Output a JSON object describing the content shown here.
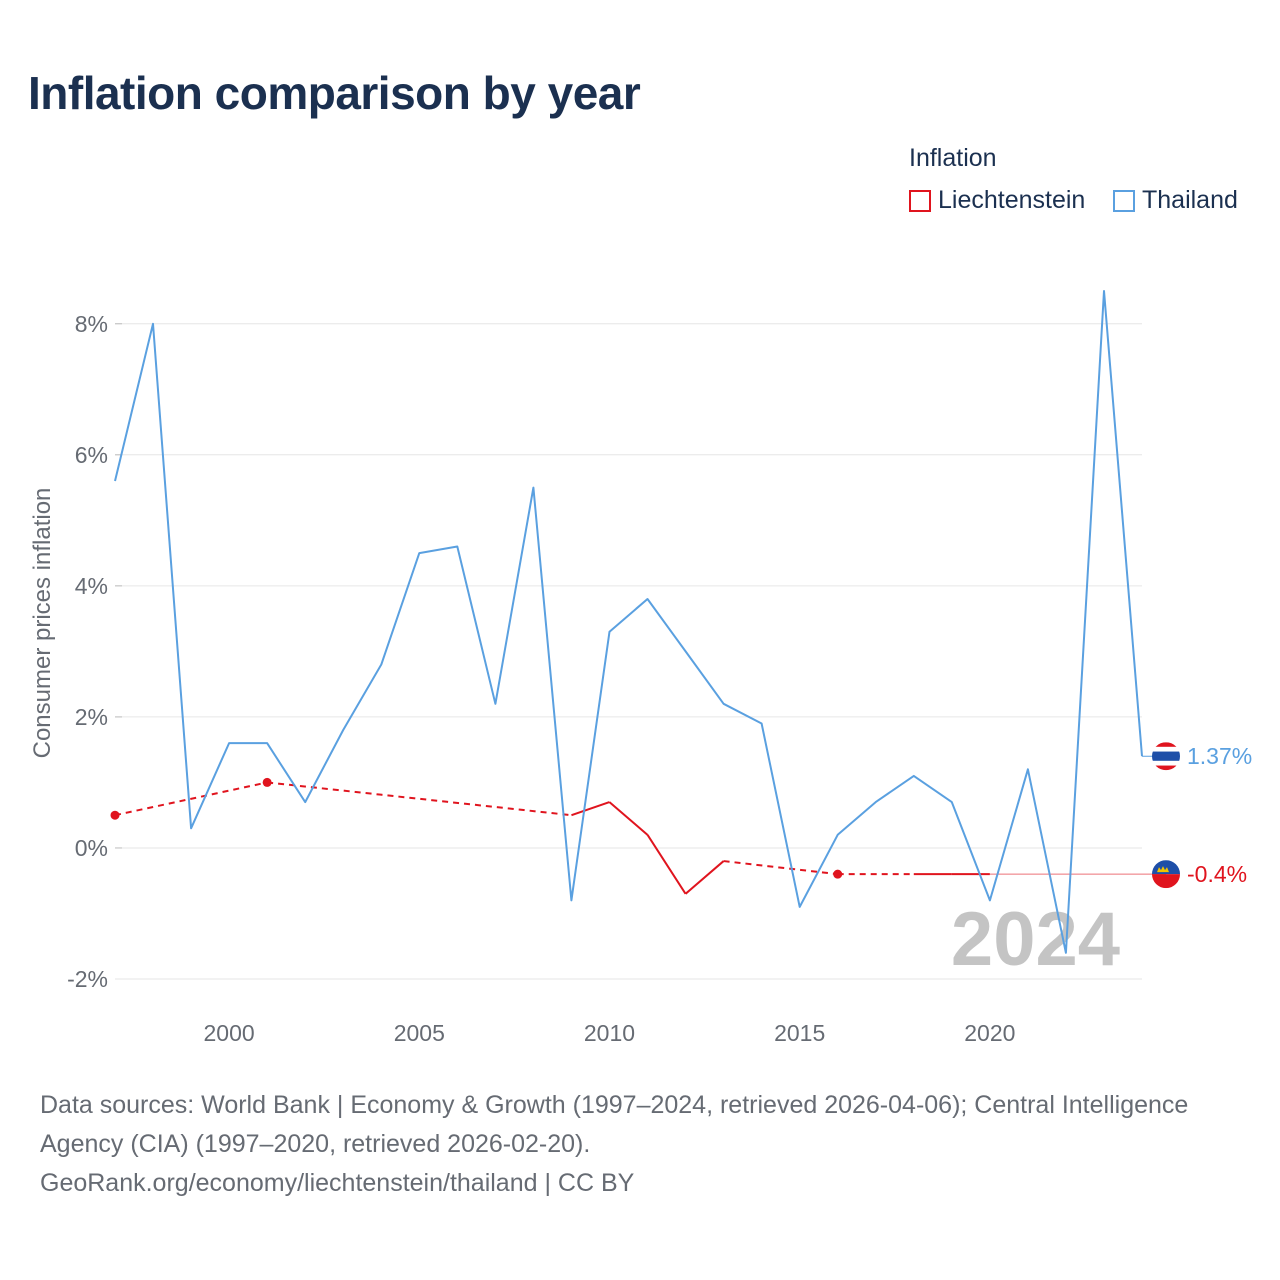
{
  "title": "Inflation comparison by year",
  "legend": {
    "title": "Inflation",
    "items": [
      {
        "label": "Liechtenstein",
        "color": "#e0141e"
      },
      {
        "label": "Thailand",
        "color": "#5aa0e0"
      }
    ]
  },
  "year_watermark": "2024",
  "footer": {
    "sources": "Data sources: World Bank | Economy & Growth (1997–2024, retrieved 2026-04-06); Central Intelligence Agency (CIA) (1997–2020, retrieved 2026-02-20).",
    "credit": "GeoRank.org/economy/liechtenstein/thailand | CC BY"
  },
  "chart_data": {
    "type": "line",
    "title": "Inflation comparison by year",
    "xlabel": "",
    "ylabel": "Consumer prices inflation",
    "xlim": [
      1997,
      2024
    ],
    "ylim": [
      -2,
      8.5
    ],
    "x_ticks": [
      2000,
      2005,
      2010,
      2015,
      2020
    ],
    "y_ticks": [
      -2,
      0,
      2,
      4,
      6,
      8
    ],
    "y_tick_labels": [
      "-2%",
      "0%",
      "2%",
      "4%",
      "6%",
      "8%"
    ],
    "grid": true,
    "legend_position": "top-right",
    "series": [
      {
        "name": "Liechtenstein",
        "color": "#e0141e",
        "x": [
          1997,
          2001,
          2009,
          2010,
          2011,
          2012,
          2013,
          2016,
          2018,
          2019,
          2020
        ],
        "values": [
          0.5,
          1.0,
          0.5,
          0.7,
          0.2,
          -0.7,
          -0.2,
          -0.4,
          -0.4,
          -0.4,
          -0.4
        ],
        "segments_dashed": [
          true,
          true,
          false,
          false,
          false,
          false,
          true,
          true,
          false,
          false
        ],
        "markers_at": [
          1997,
          2001,
          2016
        ],
        "end_label": "-0.4%"
      },
      {
        "name": "Thailand",
        "color": "#5aa0e0",
        "x": [
          1997,
          1998,
          1999,
          2000,
          2001,
          2002,
          2003,
          2004,
          2005,
          2006,
          2007,
          2008,
          2009,
          2010,
          2011,
          2012,
          2013,
          2014,
          2015,
          2016,
          2017,
          2018,
          2019,
          2020,
          2021,
          2022,
          2023,
          2024
        ],
        "values": [
          5.6,
          8.0,
          0.3,
          1.6,
          1.6,
          0.7,
          1.8,
          2.8,
          4.5,
          4.6,
          2.2,
          5.5,
          -0.8,
          3.3,
          3.8,
          3.0,
          2.2,
          1.9,
          -0.9,
          0.2,
          0.7,
          1.1,
          0.7,
          -0.8,
          1.2,
          -1.6,
          8.5,
          1.4
        ],
        "end_label": "1.37%"
      }
    ]
  }
}
